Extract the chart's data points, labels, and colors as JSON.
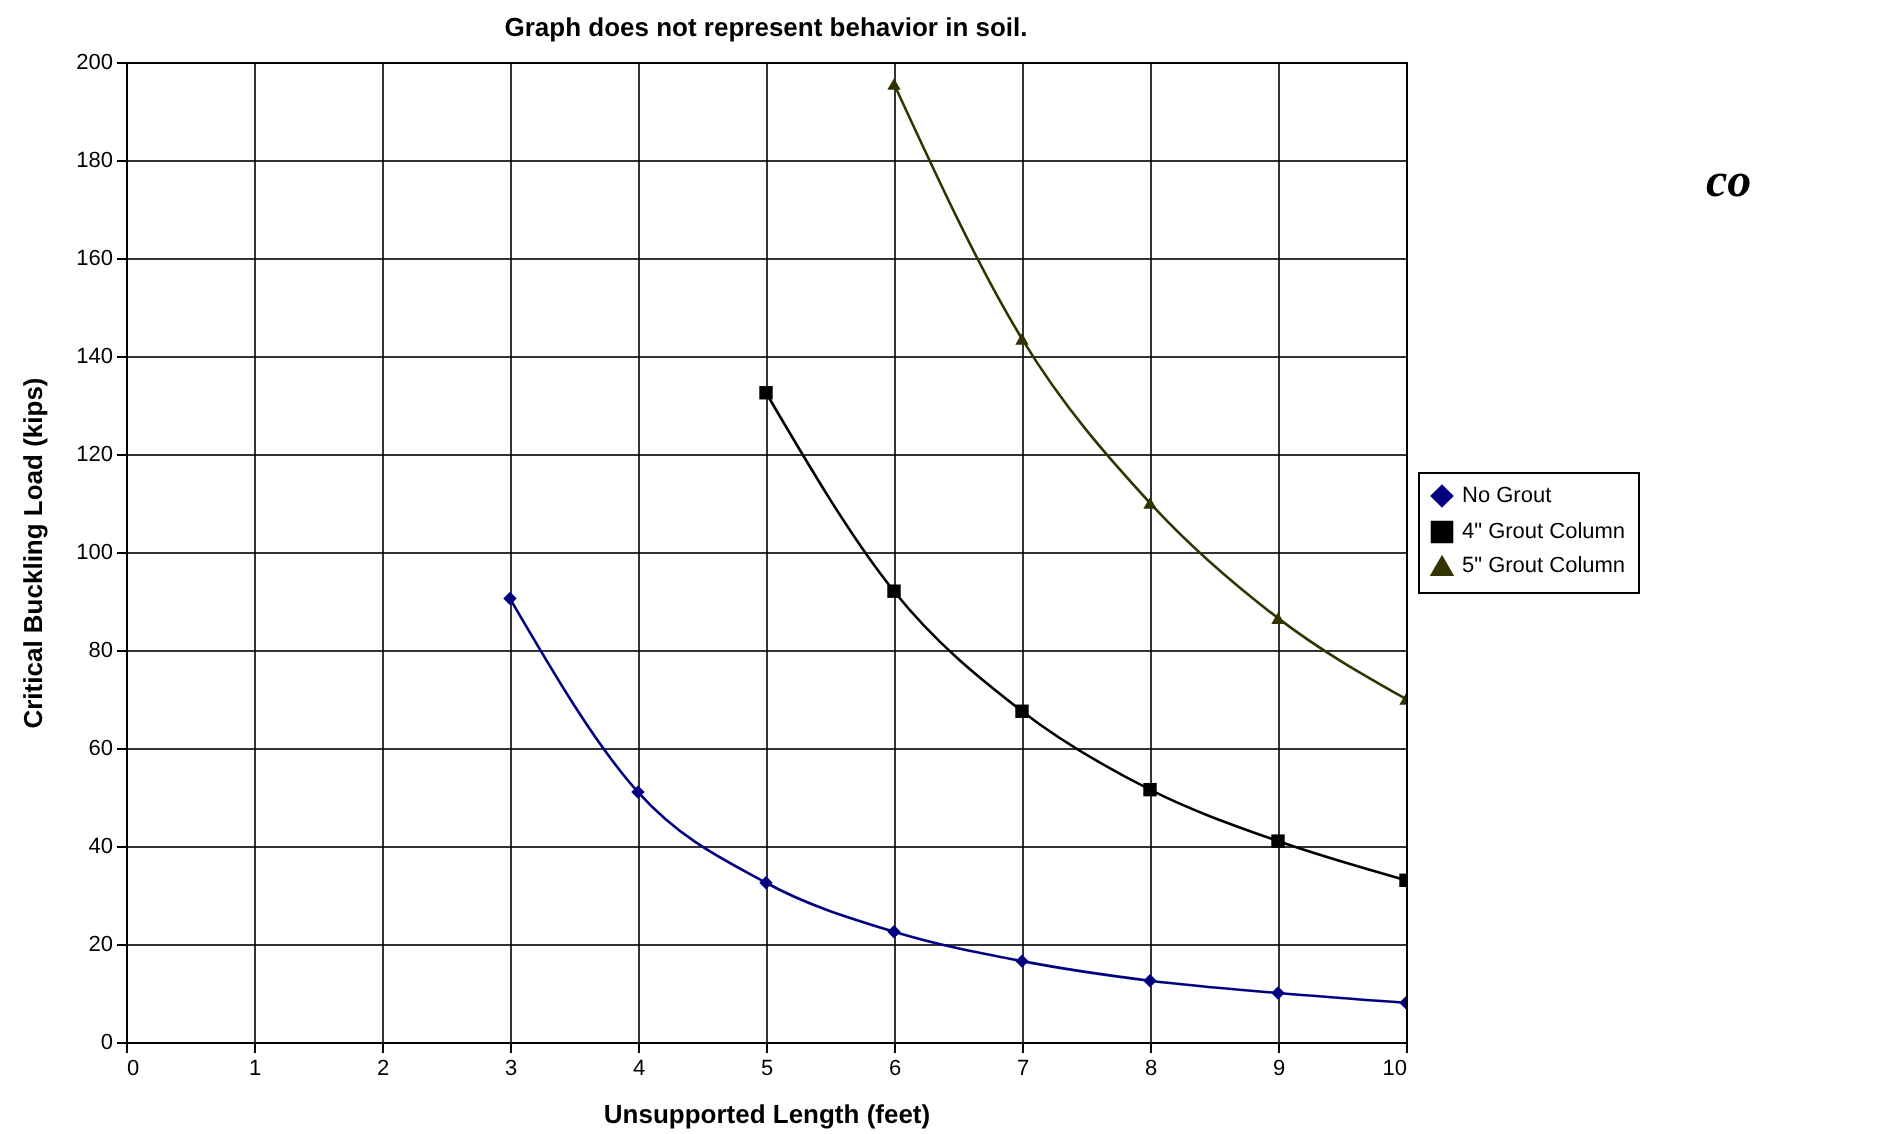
{
  "chart_data": {
    "type": "line",
    "title": "Graph does not represent behavior in soil.",
    "xlabel": "Unsupported Length (feet)",
    "ylabel": "Critical Buckling Load (kips)",
    "x": [
      3,
      4,
      5,
      6,
      7,
      8,
      9,
      10
    ],
    "series": [
      {
        "name": "No Grout",
        "color": "#000080",
        "marker": "diamond",
        "values": [
          90.5,
          51,
          32.5,
          22.5,
          16.5,
          12.5,
          10,
          8
        ]
      },
      {
        "name": "4\" Grout Column",
        "color": "#000000",
        "marker": "square",
        "values": [
          null,
          null,
          132.5,
          92,
          67.5,
          51.5,
          41,
          33
        ]
      },
      {
        "name": "5\" Grout Column",
        "color": "#333300",
        "marker": "triangle",
        "values": [
          null,
          null,
          null,
          195.5,
          143.5,
          110,
          86.5,
          70
        ]
      }
    ],
    "xlim": [
      0,
      10
    ],
    "xticks": [
      0,
      1,
      2,
      3,
      4,
      5,
      6,
      7,
      8,
      9,
      10
    ],
    "ylim": [
      0,
      200
    ],
    "yticks": [
      0,
      20,
      40,
      60,
      80,
      100,
      120,
      140,
      160,
      180,
      200
    ],
    "grid": true,
    "legend": "right",
    "line_style": "solid",
    "annotations": [
      "co"
    ]
  }
}
